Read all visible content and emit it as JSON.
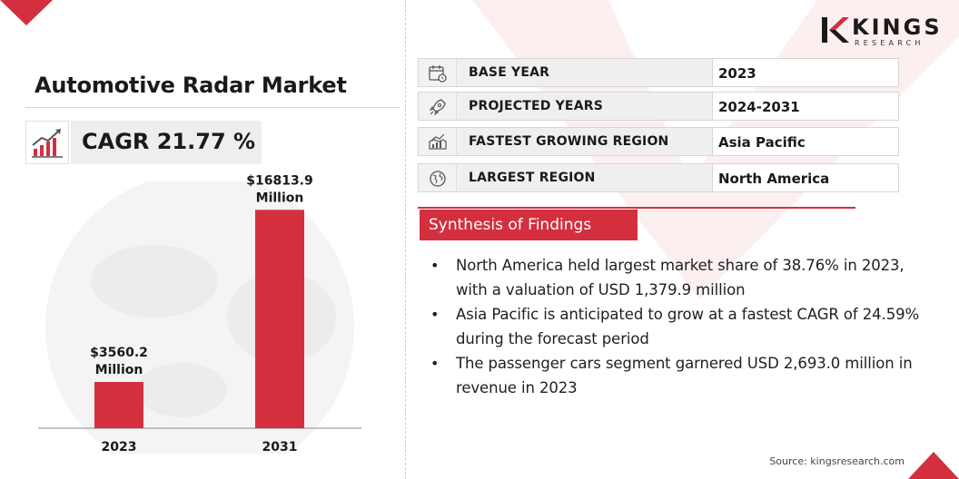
{
  "title": "Automotive Radar Market",
  "cagr": "CAGR 21.77 %",
  "colors": {
    "accent": "#d42f3f",
    "label_bg": "#efefef"
  },
  "logo": {
    "word": "KINGS",
    "sub": "RESEARCH"
  },
  "info_rows": [
    {
      "icon": "calendar-icon",
      "label": "BASE YEAR",
      "value": "2023"
    },
    {
      "icon": "rocket-icon",
      "label": "PROJECTED YEARS",
      "value": "2024-2031"
    },
    {
      "icon": "growth-map-icon",
      "label": "FASTEST GROWING REGION",
      "value": "Asia Pacific"
    },
    {
      "icon": "globe-icon",
      "label": "LARGEST REGION",
      "value": "North America"
    }
  ],
  "synthesis": {
    "title": "Synthesis of Findings",
    "items": [
      "North America held largest market share of 38.76% in 2023, with a valuation of USD 1,379.9 million",
      "Asia Pacific is anticipated to grow at a fastest CAGR of 24.59% during the forecast period",
      "The passenger cars segment garnered USD 2,693.0 million in revenue in 2023"
    ]
  },
  "source": "Source: kingsresearch.com",
  "chart_data": {
    "type": "bar",
    "categories": [
      "2023",
      "2031"
    ],
    "values": [
      3560.2,
      16813.9
    ],
    "data_labels": [
      [
        "$3560.2",
        "Million"
      ],
      [
        "$16813.9",
        "Million"
      ]
    ],
    "color": "#d42f3f",
    "title": "",
    "xlabel": "",
    "ylabel": "",
    "ylim": [
      0,
      19000
    ],
    "grid": false
  }
}
